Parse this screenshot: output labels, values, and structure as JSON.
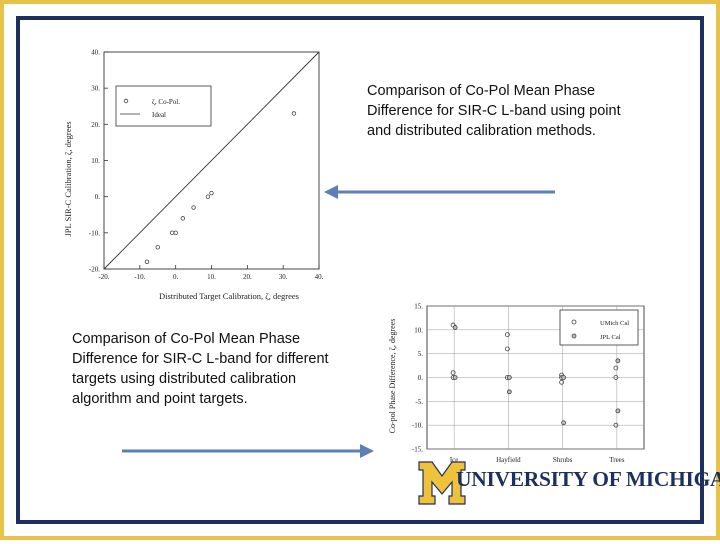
{
  "captions": {
    "top": "Comparison of Co-Pol Mean Phase Difference for SIR-C L-band using point and distributed calibration methods.",
    "bottom": "Comparison of Co-Pol Mean Phase Difference for SIR-C L-band for different targets using distributed calibration algorithm and point targets."
  },
  "logo": {
    "text": "UNIVERSITY OF MICHIGAN",
    "letter": "M",
    "colors": {
      "maize": "#f0c23c",
      "blue": "#1d2f5e"
    }
  },
  "colors": {
    "arrow": "#5b7fb8",
    "outer_border": "#e8c34a",
    "inner_border": "#1d2f5e"
  },
  "chart_data": [
    {
      "type": "scatter",
      "xlabel": "Distributed Target Calibration, ζ, degrees",
      "ylabel": "JPL SIR-C Calibration, ζ, degrees",
      "xlim": [
        -20,
        40
      ],
      "ylim": [
        -20,
        40
      ],
      "xticks": [
        "-20.",
        "-10.",
        "0.",
        "10.",
        "20.",
        "30.",
        "40."
      ],
      "yticks": [
        "40.",
        "30.",
        "20.",
        "10.",
        "0.",
        "-10.",
        "-20."
      ],
      "xtick_values": [
        -20,
        -10,
        0,
        10,
        20,
        30,
        40
      ],
      "ytick_values": [
        40,
        30,
        20,
        10,
        0,
        -10,
        -20
      ],
      "legend_position": "top-left",
      "series": [
        {
          "name": "ζ, Co-Pol.",
          "points": [
            [
              -8,
              -18
            ],
            [
              -5,
              -14
            ],
            [
              -1,
              -10
            ],
            [
              0,
              -10
            ],
            [
              2,
              -6
            ],
            [
              5,
              -3
            ],
            [
              9,
              0
            ],
            [
              10,
              1
            ],
            [
              33,
              23
            ]
          ]
        },
        {
          "name": "Ideal",
          "line": [
            [
              -20,
              -20
            ],
            [
              40,
              40
            ]
          ]
        }
      ]
    },
    {
      "type": "scatter",
      "xlabel": "",
      "ylabel": "Co-pol Phase Difference, ζ, degrees",
      "ylim": [
        -15,
        15
      ],
      "yticks": [
        "15.",
        "10.",
        "5.",
        "0.",
        "-5.",
        "-10.",
        "-15."
      ],
      "ytick_values": [
        15,
        10,
        5,
        0,
        -5,
        -10,
        -15
      ],
      "categories": [
        "Ice",
        "Hayfield",
        "Shrubs",
        "Trees"
      ],
      "legend_position": "top-right",
      "grid": true,
      "series": [
        {
          "name": "UMich Cal",
          "values": [
            [
              11,
              1,
              0
            ],
            [
              9,
              6,
              0
            ],
            [
              0.5,
              0,
              -1
            ],
            [
              2,
              0,
              -10
            ]
          ]
        },
        {
          "name": "JPL Cal",
          "values": [
            [
              10.5,
              0
            ],
            [
              0,
              -3
            ],
            [
              0,
              -9.5
            ],
            [
              3.5,
              -7
            ]
          ]
        }
      ]
    }
  ]
}
